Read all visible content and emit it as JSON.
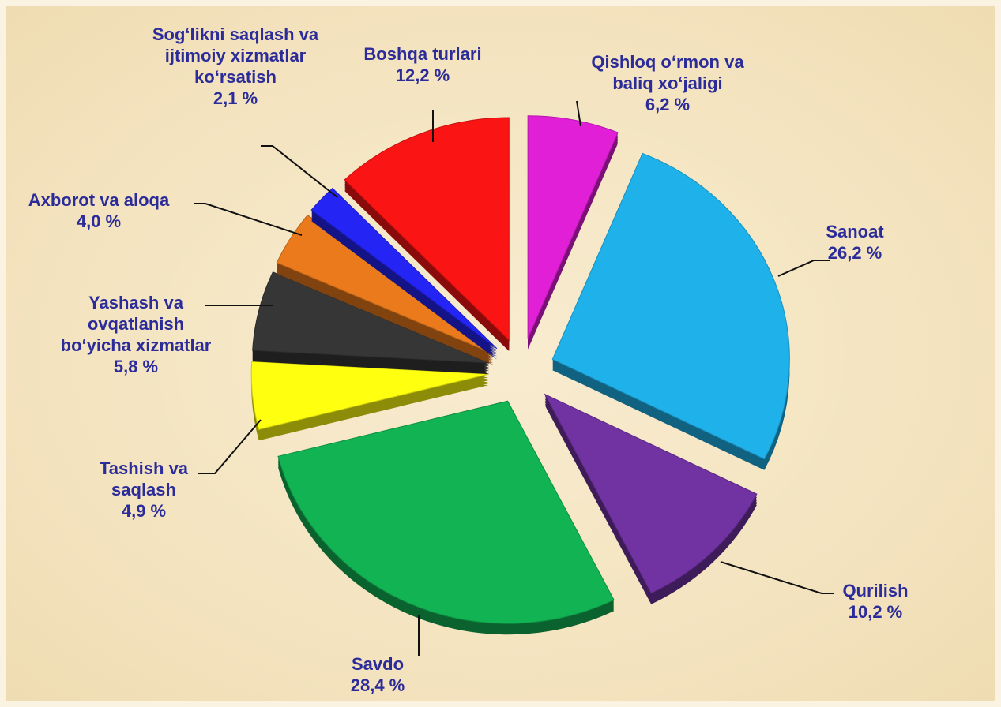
{
  "chart_data": {
    "type": "pie",
    "categories": [
      "Qishloq o‘rmon va baliq xo‘jaligi",
      "Sanoat",
      "Qurilish",
      "Savdo",
      "Tashish va saqlash",
      "Yashash va ovqatlanish bo‘yicha xizmatlar",
      "Axborot va aloqa",
      "Sog‘likni saqlash va ijtimoiy xizmatlar ko‘rsatish",
      "Boshqa turlari"
    ],
    "values": [
      6.2,
      26.2,
      10.2,
      28.4,
      4.9,
      5.8,
      4.0,
      2.1,
      12.2
    ],
    "value_labels": [
      "6,2 %",
      "26,2 %",
      "10,2 %",
      "28,4 %",
      "4,9 %",
      "5,8 %",
      "4,0 %",
      "2,1 %",
      "12,2 %"
    ],
    "colors": [
      "#e01fd6",
      "#1fb2ea",
      "#7132a2",
      "#12b353",
      "#ffff10",
      "#363636",
      "#ea7a1c",
      "#2424f4",
      "#fb1414"
    ]
  }
}
